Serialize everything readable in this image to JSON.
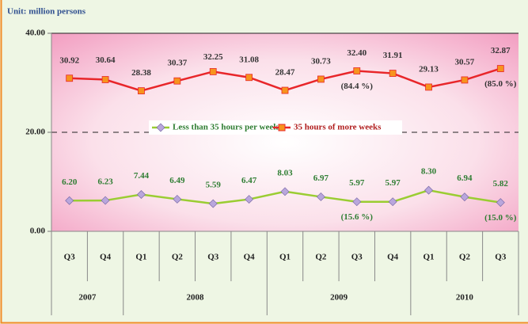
{
  "chart_data": {
    "type": "line",
    "title": "Unit: million persons",
    "categories": [
      "Q3",
      "Q4",
      "Q1",
      "Q2",
      "Q3",
      "Q4",
      "Q1",
      "Q2",
      "Q3",
      "Q4",
      "Q1",
      "Q2",
      "Q3"
    ],
    "groups": [
      {
        "name": "2007",
        "count": 2
      },
      {
        "name": "2008",
        "count": 4
      },
      {
        "name": "2009",
        "count": 4
      },
      {
        "name": "2010",
        "count": 3
      }
    ],
    "series": [
      {
        "name": "Less than 35 hours per weeks",
        "color": "#9acd32",
        "marker_color": "#b9a6dc",
        "label_color": "#2e7d32",
        "values": [
          6.2,
          6.23,
          7.44,
          6.49,
          5.59,
          6.47,
          8.03,
          6.97,
          5.97,
          5.97,
          8.3,
          6.94,
          5.82
        ],
        "value_labels": [
          "6.20",
          "6.23",
          "7.44",
          "6.49",
          "5.59",
          "6.47",
          "8.03",
          "6.97",
          "5.97",
          "5.97",
          "8.30",
          "6.94",
          "5.82"
        ],
        "annotations": [
          null,
          null,
          null,
          null,
          null,
          null,
          null,
          null,
          "(15.6 %)",
          null,
          null,
          null,
          "(15.0 %)"
        ]
      },
      {
        "name": "35 hours of more weeks",
        "color": "#e8262a",
        "marker_color": "#f7941d",
        "label_color": "#333333",
        "values": [
          30.92,
          30.64,
          28.38,
          30.37,
          32.25,
          31.08,
          28.47,
          30.73,
          32.4,
          31.91,
          29.13,
          30.57,
          32.87
        ],
        "value_labels": [
          "30.92",
          "30.64",
          "28.38",
          "30.37",
          "32.25",
          "31.08",
          "28.47",
          "30.73",
          "32.40",
          "31.91",
          "29.13",
          "30.57",
          "32.87"
        ],
        "annotations": [
          null,
          null,
          null,
          null,
          null,
          null,
          null,
          null,
          "(84.4 %)",
          null,
          null,
          null,
          "(85.0 %)"
        ]
      }
    ],
    "ylim": [
      0,
      40
    ],
    "yticks": [
      {
        "value": 0,
        "label": "0.00"
      },
      {
        "value": 20,
        "label": "20.00"
      },
      {
        "value": 40,
        "label": "40.00"
      }
    ],
    "grid": true,
    "legend": "center"
  }
}
